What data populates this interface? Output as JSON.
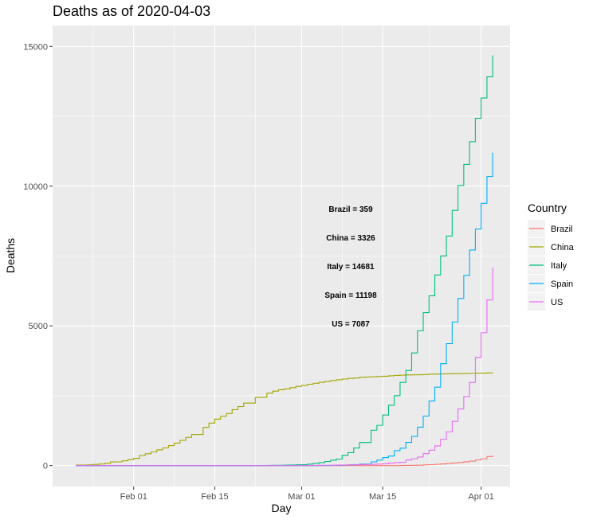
{
  "chart_data": {
    "type": "line",
    "step": true,
    "title": "Deaths as of 2020-04-03",
    "xlabel": "Day",
    "ylabel": "Deaths",
    "x_tick_labels": [
      {
        "date": "2020-02-01",
        "label": "Feb 01"
      },
      {
        "date": "2020-02-15",
        "label": "Feb 15"
      },
      {
        "date": "2020-03-01",
        "label": "Mar 01"
      },
      {
        "date": "2020-03-15",
        "label": "Mar 15"
      },
      {
        "date": "2020-04-01",
        "label": "Apr 01"
      }
    ],
    "y_ticks": [
      0,
      5000,
      10000,
      15000
    ],
    "y_tick_labels": [
      "0",
      "5000",
      "10000",
      "15000"
    ],
    "xlim": [
      "2020-01-18",
      "2020-04-06"
    ],
    "ylim": [
      -750,
      15750
    ],
    "grid": true,
    "legend": {
      "title": "Country",
      "position": "right"
    },
    "colors": {
      "Brazil": "#F8766D",
      "China": "#A3A500",
      "Italy": "#00BF7D",
      "Spain": "#00B0F6",
      "US": "#E76BF3"
    },
    "annotations": [
      "Brazil = 359",
      "China = 3326",
      "Italy = 14681",
      "Spain = 11198",
      "US = 7087"
    ],
    "series": [
      {
        "name": "Brazil",
        "points": [
          [
            "2020-01-22",
            0
          ],
          [
            "2020-03-17",
            1
          ],
          [
            "2020-03-18",
            3
          ],
          [
            "2020-03-19",
            6
          ],
          [
            "2020-03-20",
            11
          ],
          [
            "2020-03-21",
            15
          ],
          [
            "2020-03-22",
            25
          ],
          [
            "2020-03-23",
            34
          ],
          [
            "2020-03-24",
            46
          ],
          [
            "2020-03-25",
            59
          ],
          [
            "2020-03-26",
            77
          ],
          [
            "2020-03-27",
            92
          ],
          [
            "2020-03-28",
            111
          ],
          [
            "2020-03-29",
            136
          ],
          [
            "2020-03-30",
            159
          ],
          [
            "2020-03-31",
            201
          ],
          [
            "2020-04-01",
            240
          ],
          [
            "2020-04-02",
            324
          ],
          [
            "2020-04-03",
            359
          ]
        ]
      },
      {
        "name": "China",
        "points": [
          [
            "2020-01-22",
            17
          ],
          [
            "2020-01-23",
            18
          ],
          [
            "2020-01-24",
            26
          ],
          [
            "2020-01-25",
            42
          ],
          [
            "2020-01-26",
            56
          ],
          [
            "2020-01-27",
            82
          ],
          [
            "2020-01-28",
            131
          ],
          [
            "2020-01-29",
            133
          ],
          [
            "2020-01-30",
            171
          ],
          [
            "2020-01-31",
            213
          ],
          [
            "2020-02-01",
            259
          ],
          [
            "2020-02-02",
            361
          ],
          [
            "2020-02-03",
            425
          ],
          [
            "2020-02-04",
            490
          ],
          [
            "2020-02-05",
            562
          ],
          [
            "2020-02-06",
            632
          ],
          [
            "2020-02-07",
            717
          ],
          [
            "2020-02-08",
            804
          ],
          [
            "2020-02-09",
            904
          ],
          [
            "2020-02-10",
            1011
          ],
          [
            "2020-02-11",
            1111
          ],
          [
            "2020-02-12",
            1116
          ],
          [
            "2020-02-13",
            1368
          ],
          [
            "2020-02-14",
            1520
          ],
          [
            "2020-02-15",
            1662
          ],
          [
            "2020-02-16",
            1765
          ],
          [
            "2020-02-17",
            1863
          ],
          [
            "2020-02-18",
            2002
          ],
          [
            "2020-02-19",
            2114
          ],
          [
            "2020-02-20",
            2236
          ],
          [
            "2020-02-21",
            2236
          ],
          [
            "2020-02-22",
            2441
          ],
          [
            "2020-02-23",
            2443
          ],
          [
            "2020-02-24",
            2593
          ],
          [
            "2020-02-25",
            2663
          ],
          [
            "2020-02-26",
            2715
          ],
          [
            "2020-02-27",
            2744
          ],
          [
            "2020-02-28",
            2788
          ],
          [
            "2020-02-29",
            2835
          ],
          [
            "2020-03-01",
            2870
          ],
          [
            "2020-03-02",
            2912
          ],
          [
            "2020-03-03",
            2945
          ],
          [
            "2020-03-04",
            2981
          ],
          [
            "2020-03-05",
            3013
          ],
          [
            "2020-03-06",
            3042
          ],
          [
            "2020-03-07",
            3070
          ],
          [
            "2020-03-08",
            3097
          ],
          [
            "2020-03-09",
            3120
          ],
          [
            "2020-03-10",
            3136
          ],
          [
            "2020-03-11",
            3158
          ],
          [
            "2020-03-12",
            3169
          ],
          [
            "2020-03-13",
            3176
          ],
          [
            "2020-03-14",
            3189
          ],
          [
            "2020-03-15",
            3199
          ],
          [
            "2020-03-16",
            3213
          ],
          [
            "2020-03-17",
            3226
          ],
          [
            "2020-03-18",
            3237
          ],
          [
            "2020-03-19",
            3245
          ],
          [
            "2020-03-20",
            3249
          ],
          [
            "2020-03-21",
            3253
          ],
          [
            "2020-03-22",
            3259
          ],
          [
            "2020-03-23",
            3274
          ],
          [
            "2020-03-24",
            3274
          ],
          [
            "2020-03-25",
            3281
          ],
          [
            "2020-03-26",
            3285
          ],
          [
            "2020-03-27",
            3291
          ],
          [
            "2020-03-28",
            3296
          ],
          [
            "2020-03-29",
            3299
          ],
          [
            "2020-03-30",
            3304
          ],
          [
            "2020-03-31",
            3308
          ],
          [
            "2020-04-01",
            3309
          ],
          [
            "2020-04-02",
            3316
          ],
          [
            "2020-04-03",
            3326
          ]
        ]
      },
      {
        "name": "Italy",
        "points": [
          [
            "2020-01-22",
            0
          ],
          [
            "2020-02-21",
            1
          ],
          [
            "2020-02-22",
            2
          ],
          [
            "2020-02-23",
            3
          ],
          [
            "2020-02-24",
            7
          ],
          [
            "2020-02-25",
            10
          ],
          [
            "2020-02-26",
            12
          ],
          [
            "2020-02-27",
            17
          ],
          [
            "2020-02-28",
            21
          ],
          [
            "2020-02-29",
            29
          ],
          [
            "2020-03-01",
            34
          ],
          [
            "2020-03-02",
            52
          ],
          [
            "2020-03-03",
            79
          ],
          [
            "2020-03-04",
            107
          ],
          [
            "2020-03-05",
            148
          ],
          [
            "2020-03-06",
            197
          ],
          [
            "2020-03-07",
            233
          ],
          [
            "2020-03-08",
            366
          ],
          [
            "2020-03-09",
            463
          ],
          [
            "2020-03-10",
            631
          ],
          [
            "2020-03-11",
            827
          ],
          [
            "2020-03-12",
            827
          ],
          [
            "2020-03-13",
            1266
          ],
          [
            "2020-03-14",
            1441
          ],
          [
            "2020-03-15",
            1809
          ],
          [
            "2020-03-16",
            2158
          ],
          [
            "2020-03-17",
            2503
          ],
          [
            "2020-03-18",
            2978
          ],
          [
            "2020-03-19",
            3405
          ],
          [
            "2020-03-20",
            4032
          ],
          [
            "2020-03-21",
            4825
          ],
          [
            "2020-03-22",
            5476
          ],
          [
            "2020-03-23",
            6077
          ],
          [
            "2020-03-24",
            6820
          ],
          [
            "2020-03-25",
            7503
          ],
          [
            "2020-03-26",
            8215
          ],
          [
            "2020-03-27",
            9134
          ],
          [
            "2020-03-28",
            10023
          ],
          [
            "2020-03-29",
            10779
          ],
          [
            "2020-03-30",
            11591
          ],
          [
            "2020-03-31",
            12428
          ],
          [
            "2020-04-01",
            13155
          ],
          [
            "2020-04-02",
            13915
          ],
          [
            "2020-04-03",
            14681
          ]
        ]
      },
      {
        "name": "Spain",
        "points": [
          [
            "2020-01-22",
            0
          ],
          [
            "2020-03-03",
            1
          ],
          [
            "2020-03-04",
            2
          ],
          [
            "2020-03-05",
            3
          ],
          [
            "2020-03-06",
            5
          ],
          [
            "2020-03-07",
            10
          ],
          [
            "2020-03-08",
            17
          ],
          [
            "2020-03-09",
            28
          ],
          [
            "2020-03-10",
            35
          ],
          [
            "2020-03-11",
            54
          ],
          [
            "2020-03-12",
            55
          ],
          [
            "2020-03-13",
            133
          ],
          [
            "2020-03-14",
            195
          ],
          [
            "2020-03-15",
            289
          ],
          [
            "2020-03-16",
            342
          ],
          [
            "2020-03-17",
            533
          ],
          [
            "2020-03-18",
            623
          ],
          [
            "2020-03-19",
            830
          ],
          [
            "2020-03-20",
            1043
          ],
          [
            "2020-03-21",
            1375
          ],
          [
            "2020-03-22",
            1772
          ],
          [
            "2020-03-23",
            2311
          ],
          [
            "2020-03-24",
            2808
          ],
          [
            "2020-03-25",
            3647
          ],
          [
            "2020-03-26",
            4365
          ],
          [
            "2020-03-27",
            5138
          ],
          [
            "2020-03-28",
            5982
          ],
          [
            "2020-03-29",
            6803
          ],
          [
            "2020-03-30",
            7716
          ],
          [
            "2020-03-31",
            8464
          ],
          [
            "2020-04-01",
            9387
          ],
          [
            "2020-04-02",
            10348
          ],
          [
            "2020-04-03",
            11198
          ]
        ]
      },
      {
        "name": "US",
        "points": [
          [
            "2020-01-22",
            0
          ],
          [
            "2020-02-29",
            1
          ],
          [
            "2020-03-01",
            1
          ],
          [
            "2020-03-02",
            6
          ],
          [
            "2020-03-03",
            7
          ],
          [
            "2020-03-04",
            11
          ],
          [
            "2020-03-05",
            12
          ],
          [
            "2020-03-06",
            14
          ],
          [
            "2020-03-07",
            17
          ],
          [
            "2020-03-08",
            21
          ],
          [
            "2020-03-09",
            22
          ],
          [
            "2020-03-10",
            28
          ],
          [
            "2020-03-11",
            36
          ],
          [
            "2020-03-12",
            40
          ],
          [
            "2020-03-13",
            47
          ],
          [
            "2020-03-14",
            54
          ],
          [
            "2020-03-15",
            63
          ],
          [
            "2020-03-16",
            85
          ],
          [
            "2020-03-17",
            108
          ],
          [
            "2020-03-18",
            118
          ],
          [
            "2020-03-19",
            200
          ],
          [
            "2020-03-20",
            244
          ],
          [
            "2020-03-21",
            307
          ],
          [
            "2020-03-22",
            427
          ],
          [
            "2020-03-23",
            552
          ],
          [
            "2020-03-24",
            706
          ],
          [
            "2020-03-25",
            942
          ],
          [
            "2020-03-26",
            1209
          ],
          [
            "2020-03-27",
            1581
          ],
          [
            "2020-03-28",
            2026
          ],
          [
            "2020-03-29",
            2467
          ],
          [
            "2020-03-30",
            2978
          ],
          [
            "2020-03-31",
            3873
          ],
          [
            "2020-04-01",
            4757
          ],
          [
            "2020-04-02",
            5926
          ],
          [
            "2020-04-03",
            7087
          ]
        ]
      }
    ]
  }
}
